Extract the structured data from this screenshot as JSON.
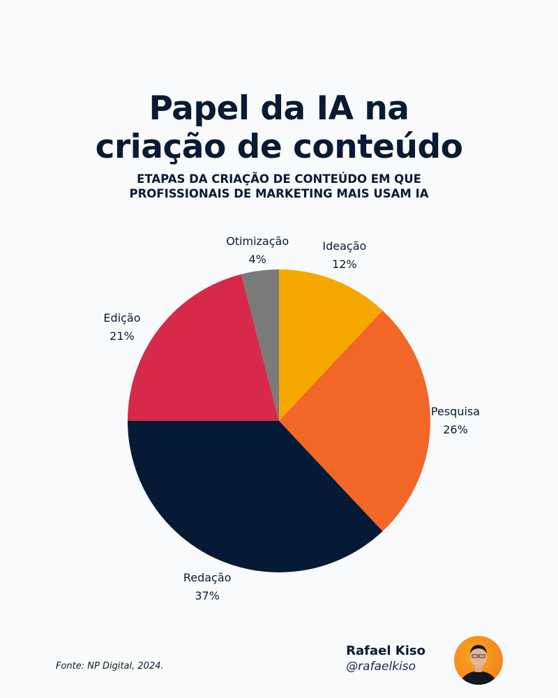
{
  "header": {
    "title_lines": [
      "Papel da IA na",
      "criação de conteúdo"
    ],
    "subtitle_lines": [
      "ETAPAS DA CRIAÇÃO DE CONTEÚDO EM QUE",
      "PROFISSIONAIS DE MARKETING MAIS USAM IA"
    ]
  },
  "chart_data": {
    "type": "pie",
    "start": "top",
    "direction": "clockwise",
    "unit": "%",
    "slices": [
      {
        "label": "Ideação",
        "value": 12,
        "display": "12%",
        "color": "#f6a800"
      },
      {
        "label": "Pesquisa",
        "value": 26,
        "display": "26%",
        "color": "#f26628"
      },
      {
        "label": "Redação",
        "value": 37,
        "display": "37%",
        "color": "#071a35"
      },
      {
        "label": "Edição",
        "value": 21,
        "display": "21%",
        "color": "#d72a4b"
      },
      {
        "label": "Otimização",
        "value": 4,
        "display": "4%",
        "color": "#7a7a7a"
      }
    ]
  },
  "footer": {
    "source": "Fonte: NP Digital, 2024.",
    "author_name": "Rafael Kiso",
    "author_handle": "@rafaelkiso"
  }
}
